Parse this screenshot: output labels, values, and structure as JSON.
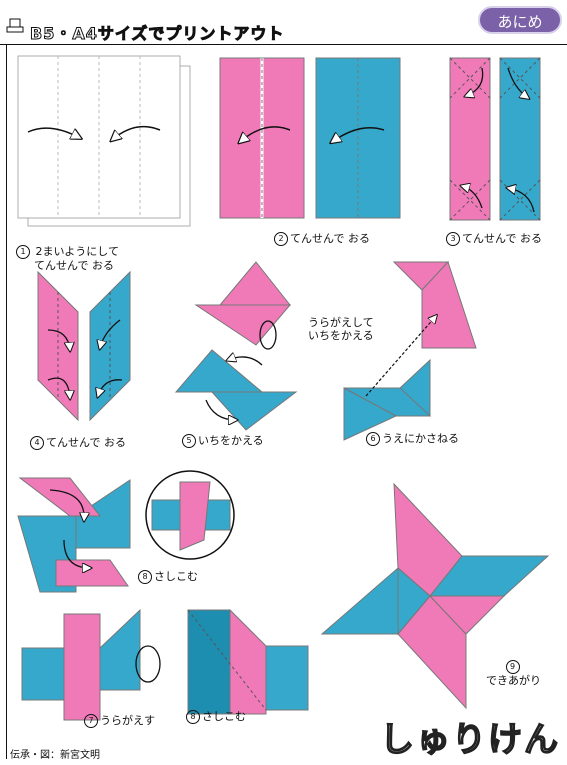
{
  "header": {
    "title": "B5・A4サイズでプリントアウト",
    "brand": "あにめ"
  },
  "steps": [
    {
      "num": "1",
      "text_1": "2まいようにして",
      "text_2": "てんせんで おる"
    },
    {
      "num": "2",
      "text": "てんせんで おる"
    },
    {
      "num": "3",
      "text": "てんせんで おる"
    },
    {
      "num": "4",
      "text": "てんせんで おる"
    },
    {
      "num": "5",
      "text": "いちをかえる"
    },
    {
      "num": "5",
      "text_1": "うらがえして",
      "text_2": "いちをかえる"
    },
    {
      "num": "6",
      "text": "うえにかさねる"
    },
    {
      "num": "8",
      "text": "さしこむ"
    },
    {
      "num": "7",
      "text": "うらがえす"
    },
    {
      "num": "8",
      "text": "さしこむ"
    },
    {
      "num": "9",
      "text": "できあがり"
    }
  ],
  "title_art": "しゅりけん",
  "credit": "伝承・図：新宮文明",
  "colors": {
    "pink": "#f07ab8",
    "blue": "#35a8cb",
    "dark_blue": "#1d8eb0",
    "badge": "#7b62a8"
  }
}
